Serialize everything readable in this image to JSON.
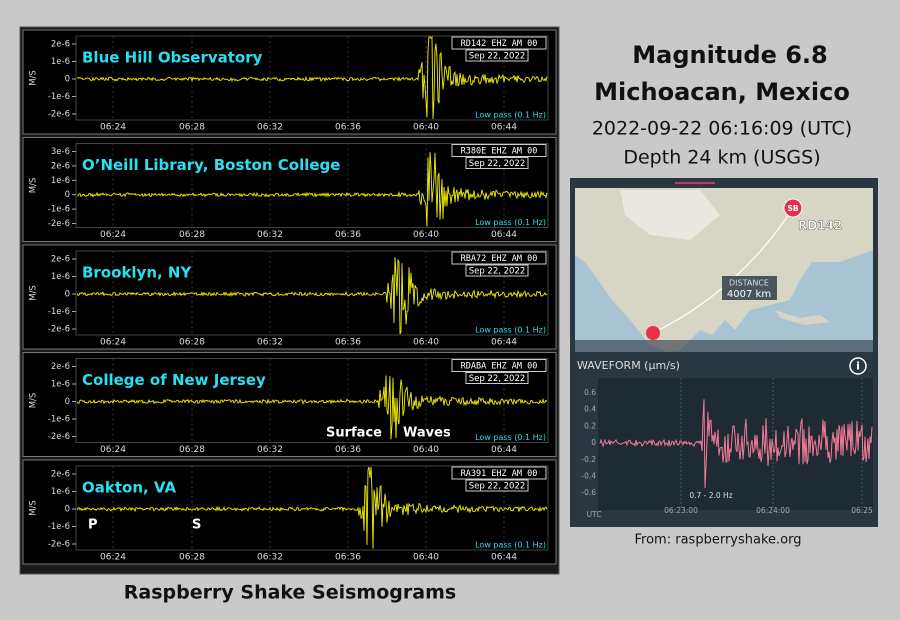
{
  "seismograms": {
    "panels": [
      {
        "station": "Blue Hill Observatory",
        "channel": "RD142 EHZ AM 00",
        "yticks": [
          "2e-6",
          "1e-6",
          "0",
          "-1e-6",
          "-2e-6"
        ]
      },
      {
        "station": "O’Neill Library, Boston College",
        "channel": "R380E EHZ AM 00",
        "yticks": [
          "3e-6",
          "2e-6",
          "1e-6",
          "0",
          "-1e-6",
          "-2e-6"
        ]
      },
      {
        "station": "Brooklyn, NY",
        "channel": "RBA72 EHZ AM 00",
        "yticks": [
          "2e-6",
          "1e-6",
          "0",
          "-1e-6",
          "-2e-6"
        ]
      },
      {
        "station": "College of New Jersey",
        "channel": "RDABA EHZ AM 00",
        "yticks": [
          "2e-6",
          "1e-6",
          "0",
          "-1e-6",
          "-2e-6"
        ]
      },
      {
        "station": "Oakton, VA",
        "channel": "RA391 EHZ AM 00",
        "yticks": [
          "2e-6",
          "1e-6",
          "0",
          "-1e-6",
          "-2e-6"
        ]
      }
    ],
    "date": "Sep 22, 2022",
    "filter": "Low pass (0.1 Hz)",
    "y_label": "M/S",
    "xticks": [
      "06:24",
      "06:28",
      "06:32",
      "06:36",
      "06:40",
      "06:44"
    ],
    "annotations": {
      "surface": "Surface",
      "waves": "Waves",
      "p": "P",
      "s": "S"
    },
    "caption": "Raspberry Shake Seismograms"
  },
  "event": {
    "title": "Magnitude 6.8",
    "location": "Michoacan, Mexico",
    "time": "2022-09-22 06:16:09 (UTC)",
    "depth": "Depth 24 km (USGS)"
  },
  "map": {
    "station_badge": "SB",
    "station": "RD142",
    "distance_label": "DISTANCE",
    "distance": "4007 km"
  },
  "waveform": {
    "title": "WAVEFORM (µm/s)",
    "info": "i",
    "yticks": [
      "0.6",
      "0.4",
      "0.2",
      "0",
      "-0.2",
      "-0.4",
      "-0.6"
    ],
    "xticks": [
      "06:23:00",
      "06:24:00",
      "06:25"
    ],
    "x_unit": "UTC",
    "band": "0.7 - 2.0 Hz"
  },
  "source": "From: raspberryshake.org"
}
